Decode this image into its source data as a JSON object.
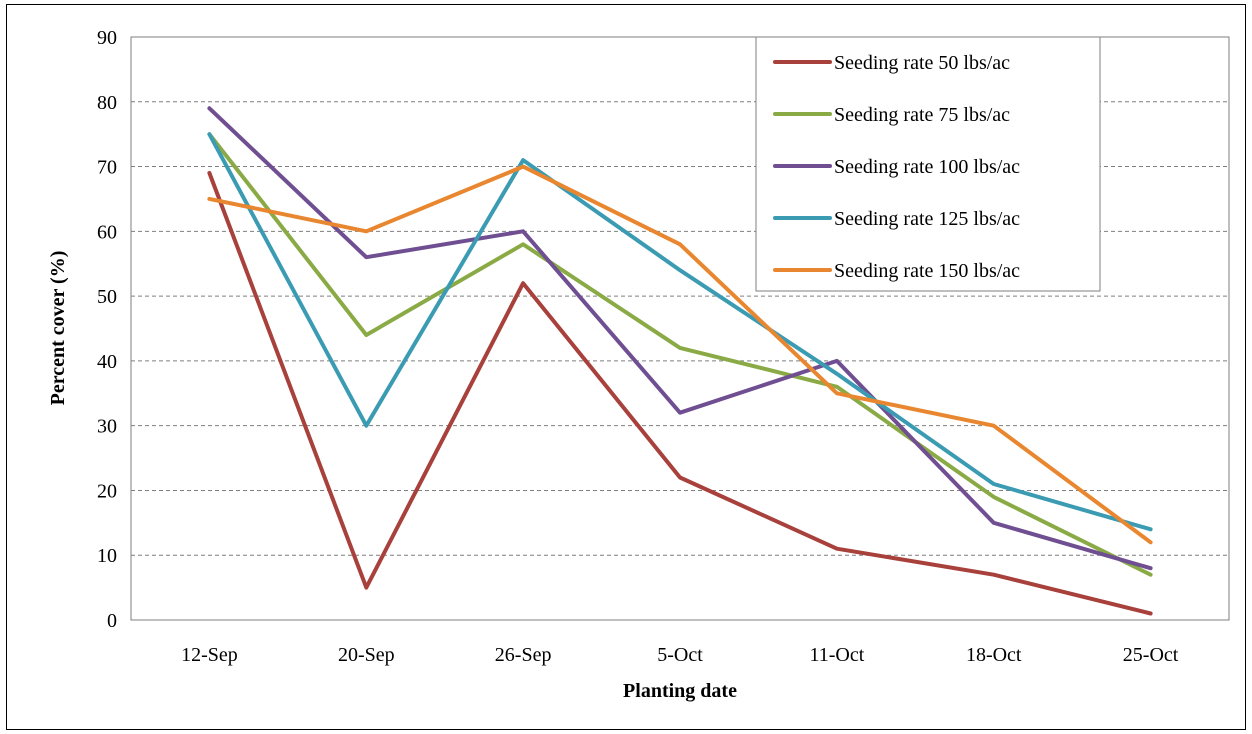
{
  "chart_data": {
    "type": "line",
    "xlabel": "Planting date",
    "ylabel": "Percent cover (%)",
    "categories": [
      "12-Sep",
      "20-Sep",
      "26-Sep",
      "5-Oct",
      "11-Oct",
      "18-Oct",
      "25-Oct"
    ],
    "ylim": [
      0,
      90
    ],
    "yticks": [
      0,
      10,
      20,
      30,
      40,
      50,
      60,
      70,
      80,
      90
    ],
    "grid": "horizontal dashed",
    "legend_position": "top-right",
    "series": [
      {
        "name": "Seeding rate 50 lbs/ac",
        "color": "#A8403B",
        "values": [
          69,
          5,
          52,
          22,
          11,
          7,
          1
        ]
      },
      {
        "name": "Seeding rate 75 lbs/ac",
        "color": "#8AAA45",
        "values": [
          75,
          44,
          58,
          42,
          36,
          19,
          7
        ]
      },
      {
        "name": "Seeding rate 100 lbs/ac",
        "color": "#6F4F92",
        "values": [
          79,
          56,
          60,
          32,
          40,
          15,
          8
        ]
      },
      {
        "name": "Seeding rate 125 lbs/ac",
        "color": "#3A9BB3",
        "values": [
          75,
          30,
          71,
          54,
          38,
          21,
          14
        ]
      },
      {
        "name": "Seeding rate 150 lbs/ac",
        "color": "#E8872F",
        "values": [
          65,
          60,
          70,
          58,
          35,
          30,
          12
        ]
      }
    ]
  }
}
